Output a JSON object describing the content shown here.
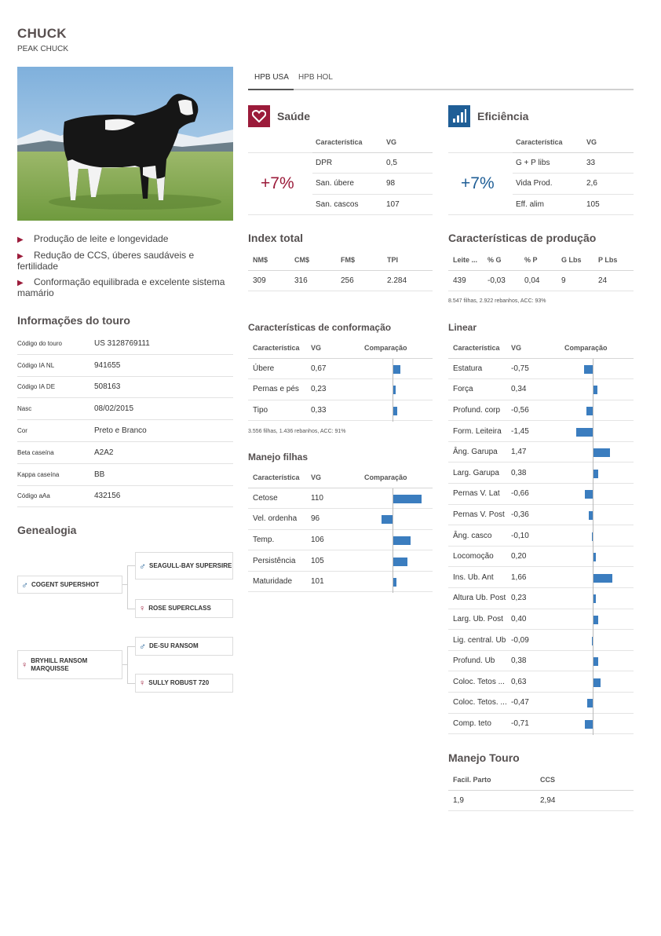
{
  "header": {
    "title": "CHUCK",
    "subtitle": "PEAK CHUCK"
  },
  "highlights": [
    "Produção de leite e longevidade",
    "Redução de CCS, úberes saudáveis e fertilidade",
    "Conformação equilibrada e excelente sistema mamário"
  ],
  "info": {
    "title": "Informações do touro",
    "rows": [
      {
        "k": "Código do touro",
        "v": "US 3128769111"
      },
      {
        "k": "Código IA NL",
        "v": "941655"
      },
      {
        "k": "Código IA DE",
        "v": "508163"
      },
      {
        "k": "Nasc",
        "v": "08/02/2015"
      },
      {
        "k": "Cor",
        "v": "Preto e Branco"
      },
      {
        "k": "Beta caseína",
        "v": "A2A2"
      },
      {
        "k": "Kappa caseína",
        "v": "BB"
      },
      {
        "k": "Código aAa",
        "v": "432156"
      }
    ]
  },
  "genealogy": {
    "title": "Genealogia",
    "sire": "COGENT SUPERSHOT",
    "sire_sire": "SEAGULL-BAY SUPERSIRE",
    "sire_dam": "ROSE SUPERCLASS",
    "dam": "BRYHILL RANSOM MARQUISSE",
    "dam_sire": "DE-SU RANSOM",
    "dam_dam": "SULLY ROBUST 720"
  },
  "tabs": [
    "HPB USA",
    "HPB HOL"
  ],
  "saude": {
    "title": "Saúde",
    "pct": "+7%",
    "col1": "Característica",
    "col2": "VG",
    "rows": [
      [
        "DPR",
        "0,5"
      ],
      [
        "San. úbere",
        "98"
      ],
      [
        "San. cascos",
        "107"
      ]
    ]
  },
  "eficiencia": {
    "title": "Eficiência",
    "pct": "+7%",
    "col1": "Característica",
    "col2": "VG",
    "rows": [
      [
        "G + P libs",
        "33"
      ],
      [
        "Vida Prod.",
        "2,6"
      ],
      [
        "Eff. alim",
        "105"
      ]
    ]
  },
  "index_total": {
    "title": "Index total",
    "headers": [
      "NM$",
      "CM$",
      "FM$",
      "TPI"
    ],
    "values": [
      "309",
      "316",
      "256",
      "2.284"
    ]
  },
  "producao": {
    "title": "Características de produção",
    "headers": [
      "Leite ...",
      "% G",
      "% P",
      "G Lbs",
      "P Lbs"
    ],
    "values": [
      "439",
      "-0,03",
      "0,04",
      "9",
      "24"
    ],
    "note": "8.547 filhas, 2.922 rebanhos, ACC: 93%"
  },
  "conformacao": {
    "title": "Características de conformação",
    "col1": "Característica",
    "col2": "VG",
    "col3": "Comparação",
    "rows": [
      {
        "name": "Úbere",
        "vg": "0,67",
        "value": 0.67
      },
      {
        "name": "Pernas e pés",
        "vg": "0,23",
        "value": 0.23
      },
      {
        "name": "Tipo",
        "vg": "0,33",
        "value": 0.33
      }
    ],
    "note": "3.556 filhas, 1.436 rebanhos, ACC: 91%"
  },
  "manejo_filhas": {
    "title": "Manejo filhas",
    "col1": "Característica",
    "col2": "VG",
    "col3": "Comparação",
    "rows": [
      {
        "name": "Cetose",
        "vg": "110",
        "value": 110
      },
      {
        "name": "Vel. ordenha",
        "vg": "96",
        "value": 96
      },
      {
        "name": "Temp.",
        "vg": "106",
        "value": 106
      },
      {
        "name": "Persistência",
        "vg": "105",
        "value": 105
      },
      {
        "name": "Maturidade",
        "vg": "101",
        "value": 101
      }
    ]
  },
  "linear": {
    "title": "Linear",
    "col1": "Característica",
    "col2": "VG",
    "col3": "Comparação",
    "rows": [
      {
        "name": "Estatura",
        "vg": "-0,75",
        "value": -0.75
      },
      {
        "name": "Força",
        "vg": "0,34",
        "value": 0.34
      },
      {
        "name": "Profund. corp",
        "vg": "-0,56",
        "value": -0.56
      },
      {
        "name": "Form. Leiteira",
        "vg": "-1,45",
        "value": -1.45
      },
      {
        "name": "Âng. Garupa",
        "vg": "1,47",
        "value": 1.47
      },
      {
        "name": "Larg. Garupa",
        "vg": "0,38",
        "value": 0.38
      },
      {
        "name": "Pernas V. Lat",
        "vg": "-0,66",
        "value": -0.66
      },
      {
        "name": "Pernas V. Post",
        "vg": "-0,36",
        "value": -0.36
      },
      {
        "name": "Âng. casco",
        "vg": "-0,10",
        "value": -0.1
      },
      {
        "name": "Locomoção",
        "vg": "0,20",
        "value": 0.2
      },
      {
        "name": "Ins. Ub. Ant",
        "vg": "1,66",
        "value": 1.66
      },
      {
        "name": "Altura Ub. Post",
        "vg": "0,23",
        "value": 0.23
      },
      {
        "name": "Larg. Ub. Post",
        "vg": "0,40",
        "value": 0.4
      },
      {
        "name": "Lig. central. Ub",
        "vg": "-0,09",
        "value": -0.09
      },
      {
        "name": "Profund. Ub",
        "vg": "0,38",
        "value": 0.38
      },
      {
        "name": "Coloc. Tetos ...",
        "vg": "0,63",
        "value": 0.63
      },
      {
        "name": "Coloc. Tetos. ...",
        "vg": "-0,47",
        "value": -0.47
      },
      {
        "name": "Comp. teto",
        "vg": "-0,71",
        "value": -0.71
      }
    ]
  },
  "manejo_touro": {
    "title": "Manejo Touro",
    "headers": [
      "Facil. Parto",
      "CCS"
    ],
    "values": [
      "1,9",
      "2,94"
    ]
  },
  "colors": {
    "accent_red": "#9b1b3a",
    "accent_blue": "#1f5e96",
    "bar": "#3b7dbf"
  }
}
